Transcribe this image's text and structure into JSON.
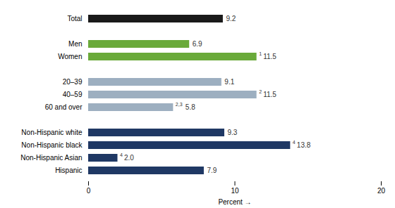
{
  "chart_data": {
    "type": "bar",
    "orientation": "horizontal",
    "categories": [
      "Hispanic",
      "Non-Hispanic Asian",
      "Non-Hispanic black",
      "Non-Hispanic white",
      null,
      "60 and over",
      "40–59",
      "20–39",
      null,
      "Women",
      "Men",
      null,
      "Total"
    ],
    "values": [
      7.9,
      2.0,
      13.8,
      9.3,
      null,
      5.8,
      11.5,
      9.1,
      null,
      11.5,
      6.9,
      null,
      9.2
    ],
    "value_labels": [
      "7.9",
      "2.0",
      "13.8",
      "9.3",
      null,
      "5.8",
      "11.5",
      "9.1",
      null,
      "11.5",
      "6.9",
      null,
      "9.2"
    ],
    "footnotes": [
      null,
      "4",
      "4",
      null,
      null,
      "2,3",
      "2",
      null,
      null,
      "1",
      null,
      null,
      null
    ],
    "colors": [
      "#1f3864",
      "#1f3864",
      "#1f3864",
      "#1f3864",
      null,
      "#9dafc0",
      "#9dafc0",
      "#9dafc0",
      null,
      "#6aaa3a",
      "#6aaa3a",
      null,
      "#1a1a1a"
    ],
    "xlabel": "Percent",
    "xlim": [
      0,
      20
    ],
    "xticks": [
      0,
      10,
      20
    ],
    "data_labels": true
  }
}
